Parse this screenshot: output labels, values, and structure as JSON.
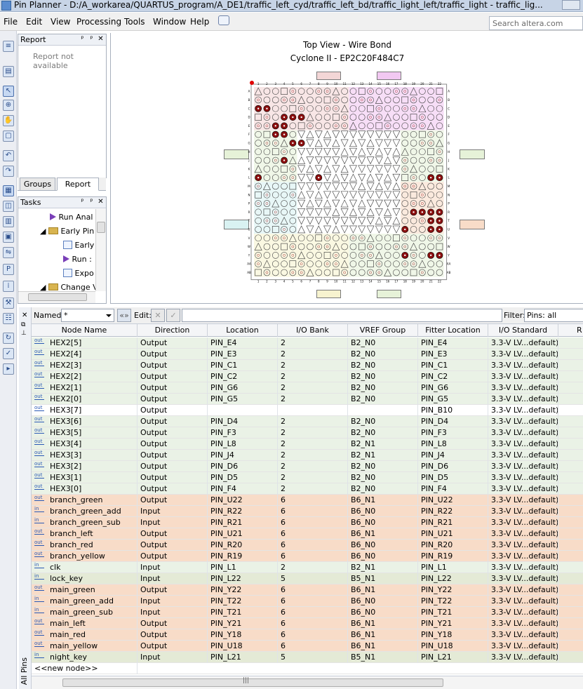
{
  "window": {
    "title": "Pin Planner - D:/A_workarea/QUARTUS_program/A_DE1/traffic_left_cyd/traffic_left_bd/traffic_light_left/traffic_light - traffic_lig..."
  },
  "menu": [
    "File",
    "Edit",
    "View",
    "Processing",
    "Tools",
    "Window",
    "Help"
  ],
  "search": {
    "placeholder": "Search altera.com"
  },
  "report_panel": {
    "title": "Report",
    "message": "Report not available"
  },
  "panel_tabs": [
    "Groups",
    "Report"
  ],
  "tasks_panel": {
    "title": "Tasks",
    "items": [
      "Run Anal",
      "Early Pin",
      "Early",
      "Run :",
      "Expo",
      "Change V"
    ]
  },
  "chip": {
    "title": "Top View - Wire Bond",
    "device": "Cyclone II - EP2C20F484C7",
    "col_labels": [
      "1",
      "2",
      "3",
      "4",
      "5",
      "6",
      "7",
      "8",
      "9",
      "10",
      "11",
      "12",
      "13",
      "14",
      "15",
      "16",
      "17",
      "18",
      "19",
      "20",
      "21",
      "22"
    ],
    "row_labels": [
      "A",
      "B",
      "C",
      "D",
      "E",
      "F",
      "G",
      "H",
      "J",
      "K",
      "L",
      "M",
      "N",
      "P",
      "R",
      "T",
      "U",
      "V",
      "W",
      "Y",
      "AA",
      "AB"
    ],
    "colors": {
      "bank_pink": "#f3d6d6",
      "bank_purple": "#f2c8f2",
      "bank_green": "#e6f2d8",
      "bank_cyan": "#d9f2f2",
      "bank_orange": "#f8dcc8",
      "bank_yellow": "#f7f3cf",
      "pin_used": "#8b0f0f",
      "pin_vcc": "#4a4a4a"
    }
  },
  "filter_bar": {
    "named_label": "Named:",
    "named_value": "*",
    "edit_label": "Edit:",
    "filter_label": "Filter:",
    "filter_value": "Pins: all"
  },
  "side_label": "All Pins",
  "table": {
    "columns": [
      "Node Name",
      "Direction",
      "Location",
      "I/O Bank",
      "VREF Group",
      "Fitter Location",
      "I/O Standard",
      "R"
    ],
    "rows": [
      {
        "dir": "out",
        "name": "HEX2[5]",
        "direction": "Output",
        "location": "PIN_E4",
        "bank": "2",
        "vref": "B2_N0",
        "fitter": "PIN_E4",
        "std": "3.3-V LV...default)",
        "color": "#eaf2e6"
      },
      {
        "dir": "out",
        "name": "HEX2[4]",
        "direction": "Output",
        "location": "PIN_E3",
        "bank": "2",
        "vref": "B2_N0",
        "fitter": "PIN_E3",
        "std": "3.3-V LV...default)",
        "color": "#eaf2e6"
      },
      {
        "dir": "out",
        "name": "HEX2[3]",
        "direction": "Output",
        "location": "PIN_C1",
        "bank": "2",
        "vref": "B2_N0",
        "fitter": "PIN_C1",
        "std": "3.3-V LV...default)",
        "color": "#eaf2e6"
      },
      {
        "dir": "out",
        "name": "HEX2[2]",
        "direction": "Output",
        "location": "PIN_C2",
        "bank": "2",
        "vref": "B2_N0",
        "fitter": "PIN_C2",
        "std": "3.3-V LV...default)",
        "color": "#eaf2e6"
      },
      {
        "dir": "out",
        "name": "HEX2[1]",
        "direction": "Output",
        "location": "PIN_G6",
        "bank": "2",
        "vref": "B2_N0",
        "fitter": "PIN_G6",
        "std": "3.3-V LV...default)",
        "color": "#eaf2e6"
      },
      {
        "dir": "out",
        "name": "HEX2[0]",
        "direction": "Output",
        "location": "PIN_G5",
        "bank": "2",
        "vref": "B2_N0",
        "fitter": "PIN_G5",
        "std": "3.3-V LV...default)",
        "color": "#eaf2e6"
      },
      {
        "dir": "out",
        "name": "HEX3[7]",
        "direction": "Output",
        "location": "",
        "bank": "",
        "vref": "",
        "fitter": "PIN_B10",
        "std": "3.3-V LV...default)",
        "color": "#ffffff"
      },
      {
        "dir": "out",
        "name": "HEX3[6]",
        "direction": "Output",
        "location": "PIN_D4",
        "bank": "2",
        "vref": "B2_N0",
        "fitter": "PIN_D4",
        "std": "3.3-V LV...default)",
        "color": "#eaf2e6"
      },
      {
        "dir": "out",
        "name": "HEX3[5]",
        "direction": "Output",
        "location": "PIN_F3",
        "bank": "2",
        "vref": "B2_N0",
        "fitter": "PIN_F3",
        "std": "3.3-V LV...default)",
        "color": "#eaf2e6"
      },
      {
        "dir": "out",
        "name": "HEX3[4]",
        "direction": "Output",
        "location": "PIN_L8",
        "bank": "2",
        "vref": "B2_N1",
        "fitter": "PIN_L8",
        "std": "3.3-V LV...default)",
        "color": "#eaf2e6"
      },
      {
        "dir": "out",
        "name": "HEX3[3]",
        "direction": "Output",
        "location": "PIN_J4",
        "bank": "2",
        "vref": "B2_N1",
        "fitter": "PIN_J4",
        "std": "3.3-V LV...default)",
        "color": "#eaf2e6"
      },
      {
        "dir": "out",
        "name": "HEX3[2]",
        "direction": "Output",
        "location": "PIN_D6",
        "bank": "2",
        "vref": "B2_N0",
        "fitter": "PIN_D6",
        "std": "3.3-V LV...default)",
        "color": "#eaf2e6"
      },
      {
        "dir": "out",
        "name": "HEX3[1]",
        "direction": "Output",
        "location": "PIN_D5",
        "bank": "2",
        "vref": "B2_N0",
        "fitter": "PIN_D5",
        "std": "3.3-V LV...default)",
        "color": "#eaf2e6"
      },
      {
        "dir": "out",
        "name": "HEX3[0]",
        "direction": "Output",
        "location": "PIN_F4",
        "bank": "2",
        "vref": "B2_N0",
        "fitter": "PIN_F4",
        "std": "3.3-V LV...default)",
        "color": "#eaf2e6"
      },
      {
        "dir": "out",
        "name": "branch_green",
        "direction": "Output",
        "location": "PIN_U22",
        "bank": "6",
        "vref": "B6_N1",
        "fitter": "PIN_U22",
        "std": "3.3-V LV...default)",
        "color": "#f8dcc8"
      },
      {
        "dir": "in",
        "name": "branch_green_add",
        "direction": "Input",
        "location": "PIN_R22",
        "bank": "6",
        "vref": "B6_N0",
        "fitter": "PIN_R22",
        "std": "3.3-V LV...default)",
        "color": "#f8dcc8"
      },
      {
        "dir": "in",
        "name": "branch_green_sub",
        "direction": "Input",
        "location": "PIN_R21",
        "bank": "6",
        "vref": "B6_N0",
        "fitter": "PIN_R21",
        "std": "3.3-V LV...default)",
        "color": "#f8dcc8"
      },
      {
        "dir": "out",
        "name": "branch_left",
        "direction": "Output",
        "location": "PIN_U21",
        "bank": "6",
        "vref": "B6_N1",
        "fitter": "PIN_U21",
        "std": "3.3-V LV...default)",
        "color": "#f8dcc8"
      },
      {
        "dir": "out",
        "name": "branch_red",
        "direction": "Output",
        "location": "PIN_R20",
        "bank": "6",
        "vref": "B6_N0",
        "fitter": "PIN_R20",
        "std": "3.3-V LV...default)",
        "color": "#f8dcc8"
      },
      {
        "dir": "out",
        "name": "branch_yellow",
        "direction": "Output",
        "location": "PIN_R19",
        "bank": "6",
        "vref": "B6_N0",
        "fitter": "PIN_R19",
        "std": "3.3-V LV...default)",
        "color": "#f8dcc8"
      },
      {
        "dir": "in",
        "name": "clk",
        "direction": "Input",
        "location": "PIN_L1",
        "bank": "2",
        "vref": "B2_N1",
        "fitter": "PIN_L1",
        "std": "3.3-V LV...default)",
        "color": "#eaf2e6"
      },
      {
        "dir": "in",
        "name": "lock_key",
        "direction": "Input",
        "location": "PIN_L22",
        "bank": "5",
        "vref": "B5_N1",
        "fitter": "PIN_L22",
        "std": "3.3-V LV...default)",
        "color": "#e4ead6"
      },
      {
        "dir": "out",
        "name": "main_green",
        "direction": "Output",
        "location": "PIN_Y22",
        "bank": "6",
        "vref": "B6_N1",
        "fitter": "PIN_Y22",
        "std": "3.3-V LV...default)",
        "color": "#f8dcc8"
      },
      {
        "dir": "in",
        "name": "main_green_add",
        "direction": "Input",
        "location": "PIN_T22",
        "bank": "6",
        "vref": "B6_N0",
        "fitter": "PIN_T22",
        "std": "3.3-V LV...default)",
        "color": "#f8dcc8"
      },
      {
        "dir": "in",
        "name": "main_green_sub",
        "direction": "Input",
        "location": "PIN_T21",
        "bank": "6",
        "vref": "B6_N0",
        "fitter": "PIN_T21",
        "std": "3.3-V LV...default)",
        "color": "#f8dcc8"
      },
      {
        "dir": "out",
        "name": "main_left",
        "direction": "Output",
        "location": "PIN_Y21",
        "bank": "6",
        "vref": "B6_N1",
        "fitter": "PIN_Y21",
        "std": "3.3-V LV...default)",
        "color": "#f8dcc8"
      },
      {
        "dir": "out",
        "name": "main_red",
        "direction": "Output",
        "location": "PIN_Y18",
        "bank": "6",
        "vref": "B6_N1",
        "fitter": "PIN_Y18",
        "std": "3.3-V LV...default)",
        "color": "#f8dcc8"
      },
      {
        "dir": "out",
        "name": "main_yellow",
        "direction": "Output",
        "location": "PIN_U18",
        "bank": "6",
        "vref": "B6_N1",
        "fitter": "PIN_U18",
        "std": "3.3-V LV...default)",
        "color": "#f8dcc8"
      },
      {
        "dir": "in",
        "name": "night_key",
        "direction": "Input",
        "location": "PIN_L21",
        "bank": "5",
        "vref": "B5_N1",
        "fitter": "PIN_L21",
        "std": "3.3-V LV...default)",
        "color": "#e4ead6"
      }
    ],
    "new_node": "<<new node>>"
  }
}
